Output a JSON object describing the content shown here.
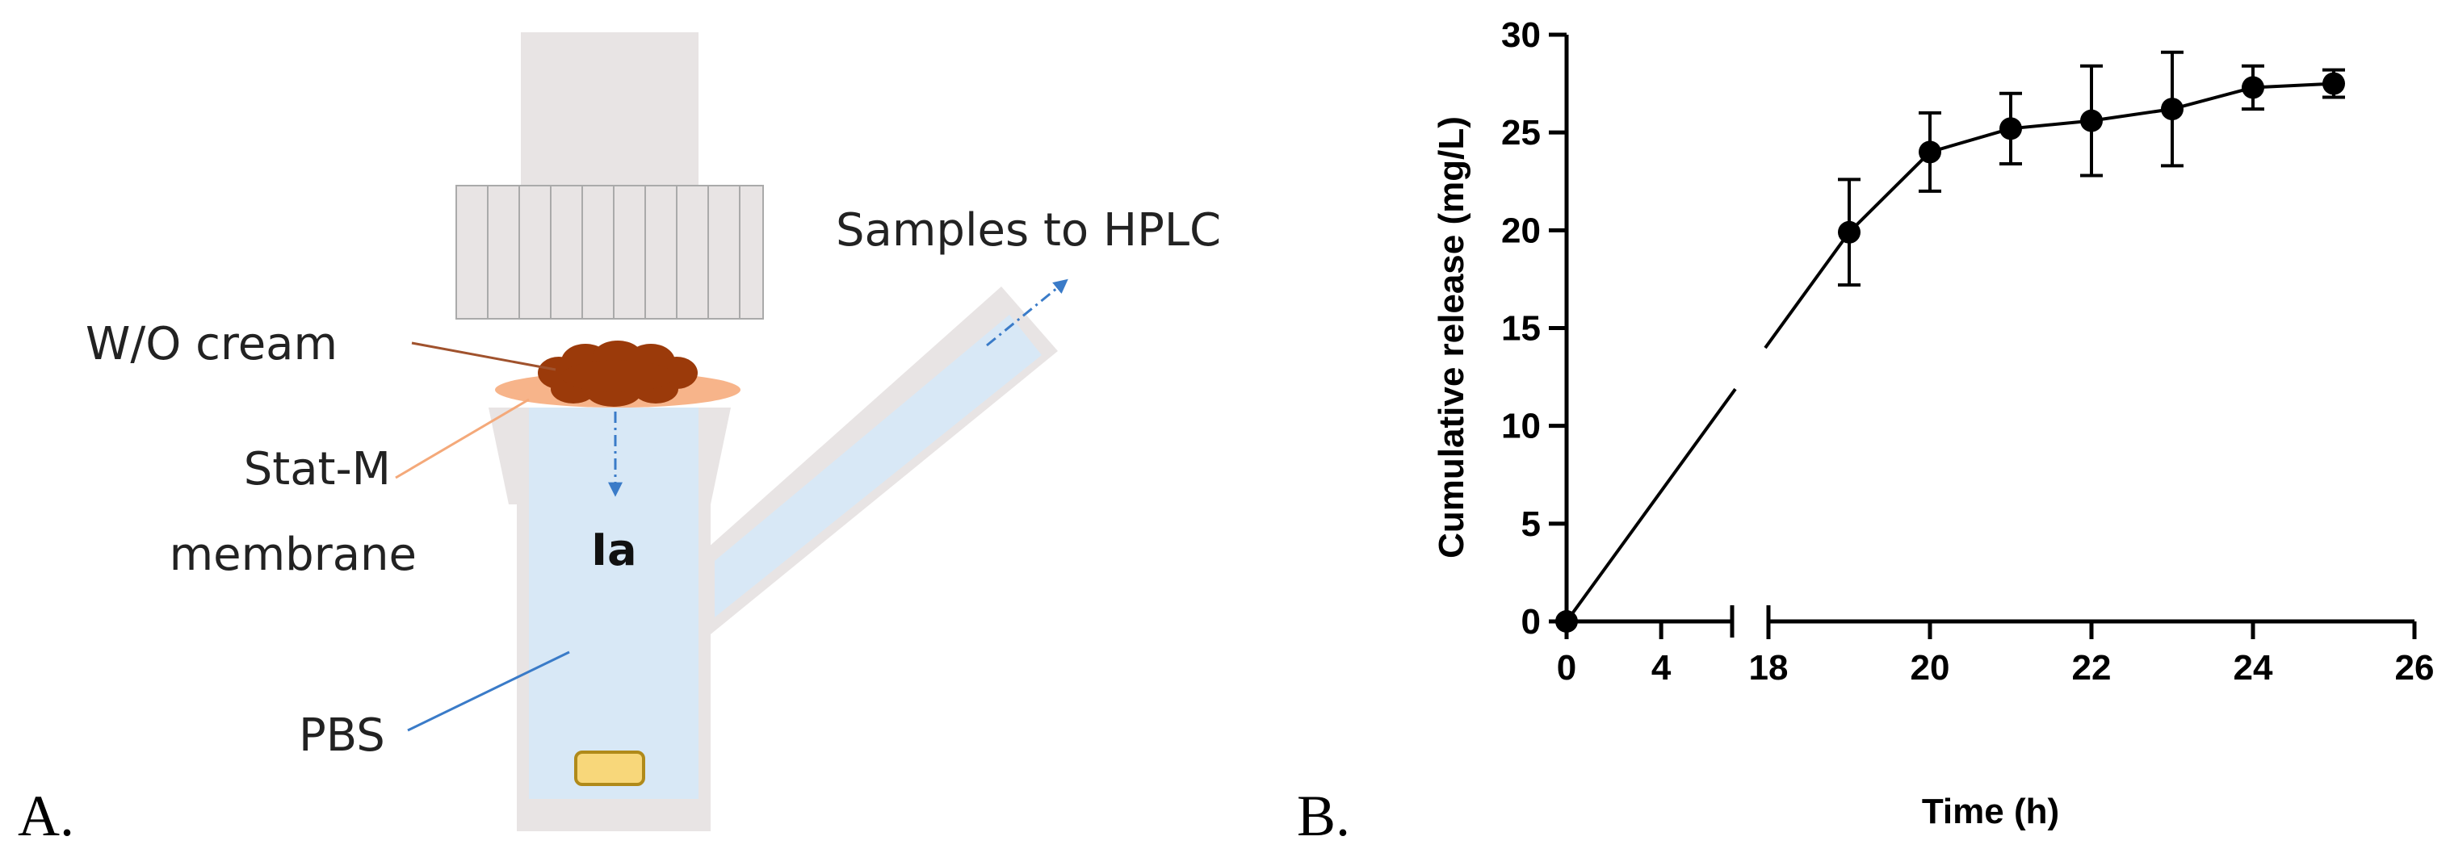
{
  "panels": {
    "a": {
      "letter": "A.",
      "labels": {
        "samples": "Samples to HPLC",
        "cream": "W/O cream",
        "membrane_line1": "Stat-M",
        "membrane_line2": "membrane",
        "compound": "Ia",
        "buffer": "PBS"
      },
      "colors": {
        "cell_body": "#e8e4e4",
        "receptor_fluid": "#d8e8f6",
        "membrane": "#f7b48a",
        "cream": "#9b3a0a",
        "stir_bar": "#f8d77a",
        "arrow": "#3a7bc8"
      }
    },
    "b": {
      "letter": "B."
    }
  },
  "chart_data": {
    "type": "line",
    "title": "",
    "xlabel": "Time (h)",
    "ylabel": "Cumulative release (mg/L)",
    "x_axis_break": {
      "from": 7,
      "to": 18
    },
    "xticks_left": [
      0,
      4
    ],
    "xticks_right": [
      18,
      20,
      22,
      24,
      26
    ],
    "xlim_left": [
      0,
      7
    ],
    "xlim_right": [
      18,
      26
    ],
    "yticks": [
      0,
      5,
      10,
      15,
      20,
      25,
      30
    ],
    "ylim": [
      0,
      30
    ],
    "grid": false,
    "legend": "none",
    "series": [
      {
        "x": [
          0,
          19,
          20,
          21,
          22,
          23,
          24,
          25
        ],
        "y": [
          0,
          19.9,
          24.0,
          25.2,
          25.6,
          26.2,
          27.3,
          27.5
        ],
        "err": [
          0,
          2.7,
          2.0,
          1.8,
          2.8,
          2.9,
          1.1,
          0.7
        ]
      }
    ]
  }
}
